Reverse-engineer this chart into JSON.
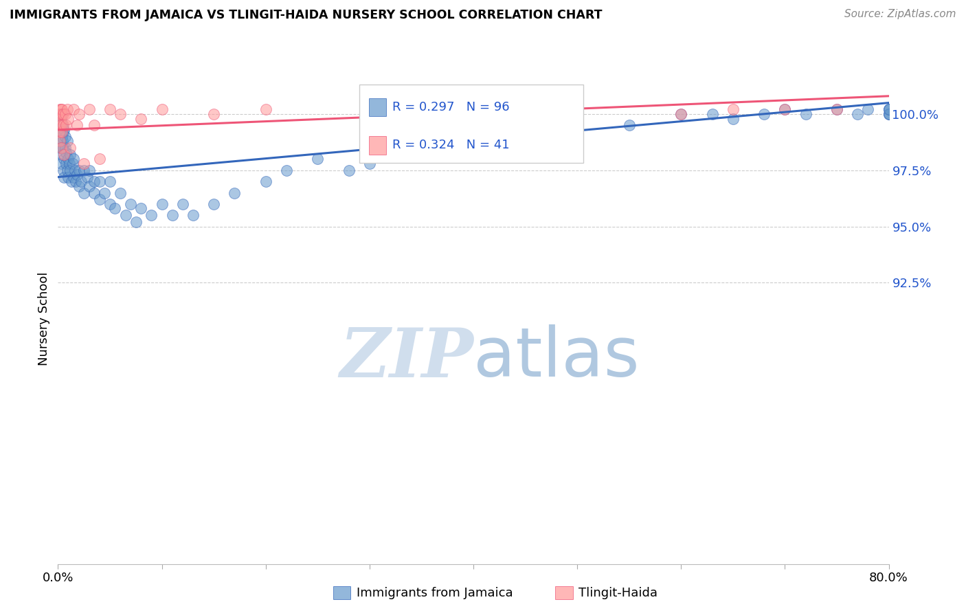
{
  "title": "IMMIGRANTS FROM JAMAICA VS TLINGIT-HAIDA NURSERY SCHOOL CORRELATION CHART",
  "source": "Source: ZipAtlas.com",
  "ylabel": "Nursery School",
  "y_tick_labels": [
    "92.5%",
    "95.0%",
    "97.5%",
    "100.0%"
  ],
  "y_tick_values": [
    92.5,
    95.0,
    97.5,
    100.0
  ],
  "x_range": [
    0.0,
    80.0
  ],
  "y_range": [
    80.0,
    101.8
  ],
  "legend_blue_R": "R = 0.297",
  "legend_blue_N": "N = 96",
  "legend_pink_R": "R = 0.324",
  "legend_pink_N": "N = 41",
  "legend_blue_label": "Immigrants from Jamaica",
  "legend_pink_label": "Tlingit-Haida",
  "blue_color": "#6699CC",
  "pink_color": "#FF9999",
  "trend_blue_color": "#3366BB",
  "trend_pink_color": "#EE5577",
  "watermark_color": "#D0DEED",
  "blue_trend_x0": 0.0,
  "blue_trend_x1": 80.0,
  "blue_trend_y0": 97.2,
  "blue_trend_y1": 100.5,
  "pink_trend_x0": 0.0,
  "pink_trend_x1": 80.0,
  "pink_trend_y0": 99.3,
  "pink_trend_y1": 100.8,
  "blue_x": [
    0.1,
    0.1,
    0.15,
    0.15,
    0.2,
    0.2,
    0.2,
    0.25,
    0.25,
    0.3,
    0.3,
    0.3,
    0.35,
    0.35,
    0.4,
    0.4,
    0.4,
    0.45,
    0.45,
    0.5,
    0.5,
    0.5,
    0.6,
    0.6,
    0.6,
    0.7,
    0.7,
    0.8,
    0.8,
    0.9,
    0.9,
    1.0,
    1.0,
    1.1,
    1.2,
    1.2,
    1.3,
    1.4,
    1.5,
    1.5,
    1.6,
    1.7,
    1.8,
    2.0,
    2.0,
    2.2,
    2.5,
    2.5,
    2.8,
    3.0,
    3.0,
    3.5,
    3.5,
    4.0,
    4.0,
    4.5,
    5.0,
    5.0,
    5.5,
    6.0,
    6.5,
    7.0,
    7.5,
    8.0,
    9.0,
    10.0,
    11.0,
    12.0,
    13.0,
    15.0,
    17.0,
    20.0,
    22.0,
    25.0,
    28.0,
    30.0,
    35.0,
    40.0,
    45.0,
    50.0,
    55.0,
    60.0,
    63.0,
    65.0,
    68.0,
    70.0,
    72.0,
    75.0,
    77.0,
    78.0,
    80.0,
    80.0,
    80.0,
    80.0,
    80.0,
    80.0
  ],
  "blue_y": [
    99.8,
    99.5,
    100.0,
    99.2,
    99.8,
    98.5,
    100.0,
    99.5,
    98.8,
    99.2,
    97.8,
    99.8,
    98.5,
    100.0,
    99.5,
    98.2,
    99.0,
    98.8,
    99.5,
    98.5,
    99.2,
    97.5,
    98.0,
    99.3,
    97.2,
    98.5,
    99.0,
    97.8,
    98.3,
    97.5,
    98.8,
    98.0,
    97.2,
    97.8,
    97.5,
    98.2,
    97.0,
    97.8,
    97.2,
    98.0,
    97.5,
    97.0,
    97.3,
    97.5,
    96.8,
    97.0,
    97.5,
    96.5,
    97.2,
    96.8,
    97.5,
    96.5,
    97.0,
    96.2,
    97.0,
    96.5,
    96.0,
    97.0,
    95.8,
    96.5,
    95.5,
    96.0,
    95.2,
    95.8,
    95.5,
    96.0,
    95.5,
    96.0,
    95.5,
    96.0,
    96.5,
    97.0,
    97.5,
    98.0,
    97.5,
    97.8,
    98.2,
    98.5,
    98.8,
    99.2,
    99.5,
    100.0,
    100.0,
    99.8,
    100.0,
    100.2,
    100.0,
    100.2,
    100.0,
    100.2,
    100.2,
    100.0,
    100.0,
    100.2,
    100.0,
    100.2
  ],
  "pink_x": [
    0.1,
    0.1,
    0.15,
    0.15,
    0.2,
    0.2,
    0.25,
    0.3,
    0.3,
    0.3,
    0.35,
    0.4,
    0.4,
    0.5,
    0.5,
    0.6,
    0.7,
    0.8,
    0.9,
    1.0,
    1.2,
    1.5,
    1.8,
    2.0,
    2.5,
    3.0,
    3.5,
    4.0,
    5.0,
    6.0,
    8.0,
    10.0,
    15.0,
    20.0,
    30.0,
    40.0,
    50.0,
    60.0,
    65.0,
    70.0,
    75.0
  ],
  "pink_y": [
    99.2,
    100.0,
    98.8,
    100.2,
    99.5,
    100.0,
    99.8,
    98.5,
    100.2,
    99.5,
    100.0,
    99.2,
    100.2,
    100.0,
    99.5,
    98.2,
    100.0,
    99.5,
    100.2,
    99.8,
    98.5,
    100.2,
    99.5,
    100.0,
    97.8,
    100.2,
    99.5,
    98.0,
    100.2,
    100.0,
    99.8,
    100.2,
    100.0,
    100.2,
    100.0,
    100.2,
    100.0,
    100.0,
    100.2,
    100.2,
    100.2
  ]
}
